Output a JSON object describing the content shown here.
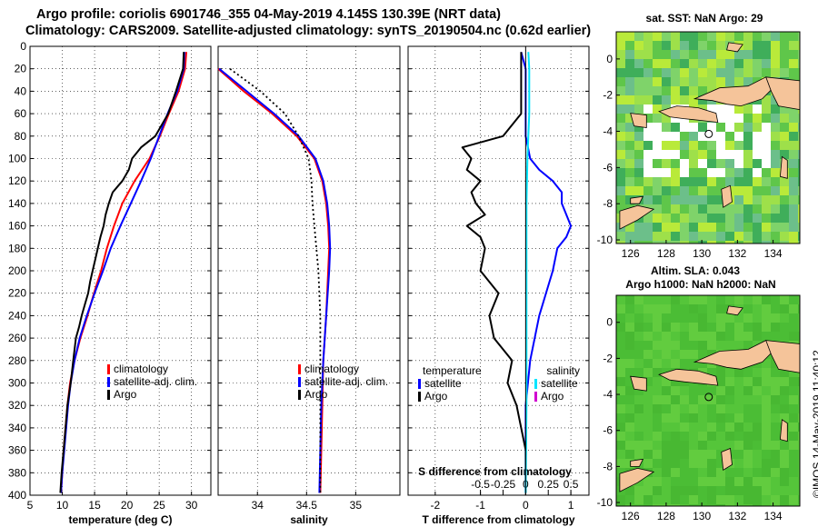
{
  "header": {
    "line1": "Argo profile: coriolis 6901746_355 04-May-2019 4.145S 130.39E (NRT data)",
    "line2": "Climatology: CARS2009. Satellite-adjusted climatology: synTS_20190504.nc (0.62d earlier)"
  },
  "footer_stamp": "©IMOS 14-May-2019 11:40:12",
  "colors": {
    "climatology": "#ff0000",
    "satellite": "#0000ff",
    "argo": "#000000",
    "sat_salinity": "#00e5ff",
    "argo_salinity": "#d000d0",
    "land": "#f5c49a",
    "no_data": "#ffffff"
  },
  "chart_data": [
    {
      "type": "line",
      "id": "temperature",
      "xlabel": "temperature (deg C)",
      "ylabel": "",
      "xlim": [
        5,
        33
      ],
      "ylim": [
        400,
        0
      ],
      "xticks": [
        "5",
        "10",
        "15",
        "20",
        "25",
        "30"
      ],
      "yticks": [
        "0",
        "20",
        "40",
        "60",
        "80",
        "100",
        "120",
        "140",
        "160",
        "180",
        "200",
        "220",
        "240",
        "260",
        "280",
        "300",
        "320",
        "340",
        "360",
        "380",
        "400"
      ],
      "legend": [
        "climatology",
        "satellite-adj. clim.",
        "Argo"
      ],
      "series": [
        {
          "name": "climatology",
          "color": "#ff0000",
          "depth": [
            5,
            20,
            40,
            60,
            80,
            100,
            120,
            140,
            160,
            180,
            200,
            220,
            240,
            260,
            280,
            300,
            320,
            340,
            360,
            380,
            398
          ],
          "values": [
            29.2,
            29.0,
            28.0,
            26.5,
            25.1,
            23.5,
            21.2,
            19.3,
            18.0,
            16.9,
            16.0,
            14.9,
            13.9,
            12.8,
            11.9,
            11.2,
            10.8,
            10.5,
            10.2,
            10.0,
            9.8
          ]
        },
        {
          "name": "satellite-adj. clim.",
          "color": "#0000ff",
          "depth": [
            5,
            20,
            40,
            60,
            80,
            100,
            120,
            140,
            160,
            180,
            200,
            220,
            240,
            260,
            280,
            300,
            320,
            340,
            360,
            380,
            398
          ],
          "values": [
            28.9,
            28.8,
            27.8,
            26.3,
            25.0,
            23.7,
            22.2,
            20.6,
            19.0,
            17.5,
            16.3,
            15.0,
            13.8,
            12.7,
            11.9,
            11.3,
            10.9,
            10.6,
            10.3,
            10.0,
            9.8
          ]
        },
        {
          "name": "Argo",
          "color": "#000000",
          "depth": [
            5,
            20,
            40,
            60,
            80,
            90,
            100,
            110,
            120,
            130,
            140,
            150,
            160,
            170,
            180,
            190,
            200,
            210,
            220,
            230,
            240,
            250,
            260,
            280,
            300,
            320,
            340,
            360,
            380,
            398
          ],
          "values": [
            28.8,
            28.7,
            27.6,
            26.4,
            24.4,
            22.2,
            20.8,
            20.3,
            19.3,
            17.8,
            17.2,
            16.7,
            16.4,
            15.9,
            15.5,
            15.1,
            14.7,
            14.3,
            14.0,
            13.5,
            13.0,
            12.6,
            12.1,
            11.7,
            11.3,
            10.8,
            10.5,
            10.2,
            9.9,
            9.7
          ]
        }
      ]
    },
    {
      "type": "line",
      "id": "salinity",
      "xlabel": "salinity",
      "xlim": [
        33.6,
        35.45
      ],
      "ylim": [
        400,
        0
      ],
      "xticks": [
        "34",
        "34.5",
        "35"
      ],
      "legend": [
        "climatology",
        "satellite-adj. clim.",
        "Argo"
      ],
      "series": [
        {
          "name": "climatology",
          "color": "#ff0000",
          "depth": [
            20,
            30,
            40,
            60,
            80,
            100,
            120,
            140,
            160,
            180,
            200,
            240,
            280,
            320,
            360,
            398
          ],
          "values": [
            33.6,
            33.73,
            33.86,
            34.15,
            34.4,
            34.58,
            34.66,
            34.7,
            34.72,
            34.73,
            34.72,
            34.7,
            34.67,
            34.66,
            34.65,
            34.64
          ]
        },
        {
          "name": "satellite-adj. clim.",
          "color": "#0000ff",
          "depth": [
            20,
            30,
            40,
            60,
            80,
            100,
            120,
            140,
            160,
            180,
            200,
            240,
            280,
            320,
            360,
            398
          ],
          "values": [
            33.61,
            33.75,
            33.89,
            34.17,
            34.42,
            34.59,
            34.67,
            34.71,
            34.73,
            34.74,
            34.73,
            34.7,
            34.67,
            34.65,
            34.64,
            34.63
          ]
        },
        {
          "name": "Argo",
          "color": "#000000",
          "style": "dotted",
          "depth": [
            20,
            40,
            60,
            80,
            100,
            120,
            140,
            160,
            180,
            200,
            240,
            280,
            320,
            360,
            398
          ],
          "values": [
            33.72,
            34.03,
            34.28,
            34.42,
            34.52,
            34.55,
            34.56,
            34.58,
            34.6,
            34.62,
            34.64,
            34.64,
            34.64,
            34.64,
            34.64
          ]
        }
      ]
    },
    {
      "type": "line",
      "id": "difference",
      "xlabel": "T difference from climatology",
      "top_axis_label": "S difference from climatology",
      "xlim": [
        -2.6,
        1.4
      ],
      "ylim": [
        400,
        0
      ],
      "xticks": [
        "-2",
        "-1",
        "0",
        "1"
      ],
      "top_ticks": [
        "-0.5",
        "-0.25",
        "0",
        "0.25",
        "0.5"
      ],
      "legend_left": {
        "title": "temperature",
        "items": [
          "satellite",
          "Argo"
        ]
      },
      "legend_right": {
        "title": "salinity",
        "items": [
          "satellite",
          "Argo"
        ]
      },
      "series": [
        {
          "name": "T satellite",
          "color": "#0000ff",
          "depth": [
            5,
            20,
            40,
            60,
            80,
            100,
            110,
            120,
            130,
            140,
            150,
            160,
            170,
            180,
            200,
            240,
            280,
            320,
            360,
            398
          ],
          "values": [
            -0.1,
            0.0,
            0.0,
            0.0,
            0.0,
            0.1,
            0.3,
            0.6,
            0.8,
            0.8,
            0.9,
            1.0,
            0.9,
            0.7,
            0.6,
            0.3,
            0.1,
            0.0,
            0.0,
            0.0
          ]
        },
        {
          "name": "T Argo",
          "color": "#000000",
          "depth": [
            5,
            60,
            80,
            90,
            100,
            110,
            120,
            130,
            140,
            150,
            160,
            170,
            180,
            200,
            220,
            240,
            260,
            280,
            300,
            320,
            340,
            360,
            380,
            398
          ],
          "values": [
            -0.1,
            -0.1,
            -0.5,
            -1.4,
            -1.2,
            -1.3,
            -1.0,
            -1.2,
            -1.1,
            -0.9,
            -1.3,
            -1.0,
            -0.9,
            -1.0,
            -0.6,
            -0.8,
            -0.7,
            -0.3,
            -0.4,
            -0.2,
            -0.1,
            0.0,
            0.0,
            0.0
          ]
        },
        {
          "name": "S satellite",
          "color": "#00e5ff",
          "axis": "top",
          "depth": [
            5,
            20,
            40,
            60,
            80,
            100,
            140,
            200,
            260,
            320,
            398
          ],
          "values": [
            0.03,
            0.04,
            0.04,
            0.04,
            0.03,
            0.02,
            0.01,
            0.01,
            0.01,
            0.01,
            0.0
          ]
        }
      ]
    },
    {
      "type": "heatmap",
      "id": "sst_map",
      "title": "sat. SST: NaN Argo: 29",
      "xticks": [
        "126",
        "128",
        "130",
        "132",
        "134"
      ],
      "yticks": [
        "0",
        "-2",
        "-4",
        "-6",
        "-8",
        "-10"
      ],
      "xlim": [
        125.2,
        135.5
      ],
      "ylim": [
        -10.2,
        1.5
      ],
      "argo_position": [
        130.39,
        -4.145
      ]
    },
    {
      "type": "heatmap",
      "id": "sla_map",
      "title_line1": "Altim. SLA: 0.043",
      "title_line2": "Argo h1000: NaN h2000: NaN",
      "xticks": [
        "126",
        "128",
        "130",
        "132",
        "134"
      ],
      "yticks": [
        "0",
        "-2",
        "-4",
        "-6",
        "-8",
        "-10"
      ],
      "xlim": [
        125.2,
        135.5
      ],
      "ylim": [
        -10.2,
        1.5
      ],
      "argo_position": [
        130.39,
        -4.145
      ]
    }
  ]
}
